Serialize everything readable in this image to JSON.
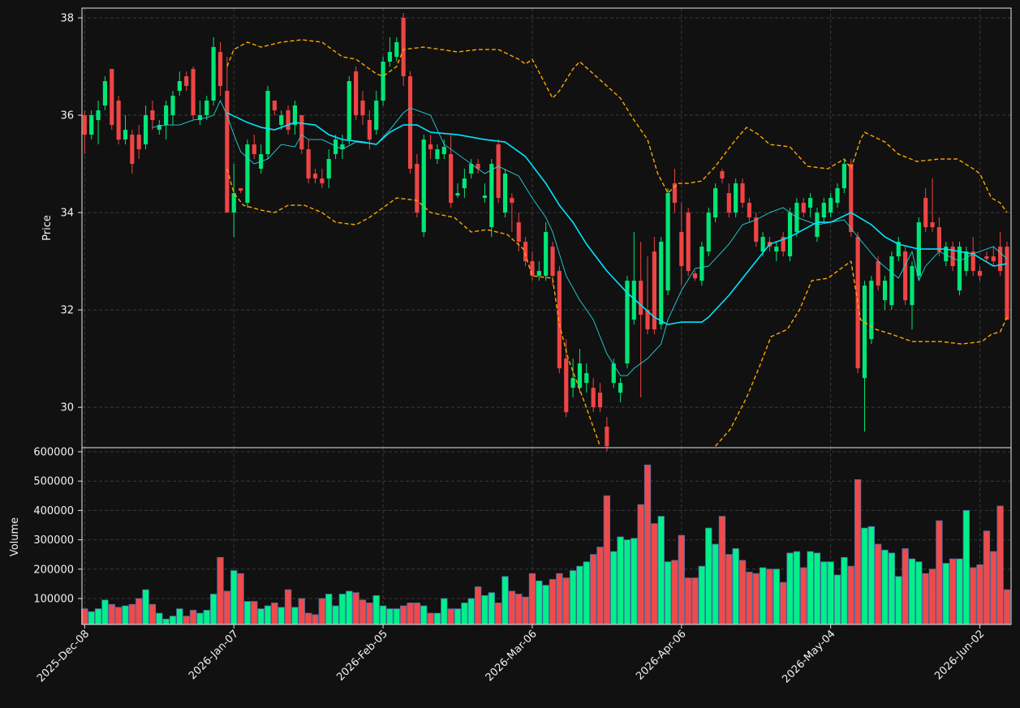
{
  "chart_data": [
    {
      "type": "candlestick",
      "ylabel": "Price",
      "xlim": [
        -0.4,
        136.6
      ],
      "ylim": [
        29.17,
        38.2
      ],
      "yticks": [
        30,
        32,
        34,
        36,
        38
      ],
      "grid": true,
      "up_color": "#00e676",
      "down_color": "#ef4444",
      "open": [
        36.0,
        35.6,
        35.9,
        36.2,
        36.95,
        36.3,
        35.5,
        35.6,
        35.6,
        35.4,
        36.1,
        35.7,
        35.8,
        36.0,
        36.5,
        36.8,
        36.95,
        35.9,
        36.0,
        36.3,
        37.3,
        36.5,
        34.0,
        34.5,
        34.2,
        35.4,
        34.9,
        35.2,
        36.3,
        35.8,
        36.1,
        35.8,
        36.0,
        35.3,
        34.8,
        34.7,
        34.7,
        35.2,
        35.3,
        35.5,
        36.9,
        36.3,
        35.9,
        35.7,
        36.3,
        37.1,
        37.2,
        38.0,
        36.8,
        35.0,
        33.6,
        35.4,
        35.1,
        35.2,
        35.2,
        34.35,
        34.5,
        34.8,
        35.0,
        34.3,
        33.7,
        35.4,
        34.0,
        34.3,
        33.8,
        33.4,
        33.0,
        32.7,
        32.7,
        33.3,
        32.8,
        31.0,
        30.4,
        30.4,
        30.5,
        30.4,
        30.3,
        29.6,
        30.5,
        30.3,
        30.9,
        31.8,
        32.6,
        32.0,
        33.2,
        31.7,
        32.4,
        34.6,
        33.6,
        34.0,
        32.75,
        32.6,
        33.2,
        33.9,
        34.85,
        34.4,
        34.0,
        34.6,
        34.2,
        33.9,
        33.2,
        33.4,
        33.2,
        33.5,
        33.1,
        33.6,
        34.2,
        34.1,
        33.5,
        33.9,
        34.0,
        34.2,
        34.5,
        35.0,
        33.5,
        30.6,
        31.4,
        33.0,
        32.2,
        32.1,
        33.1,
        33.2,
        32.1,
        32.7,
        34.3,
        33.8,
        33.7,
        33.0,
        33.3,
        32.4,
        32.8,
        33.2,
        32.8,
        33.1,
        33.1,
        33.3,
        33.3
      ],
      "high": [
        36.1,
        36.1,
        36.3,
        36.8,
        36.95,
        36.4,
        36.0,
        35.7,
        35.8,
        36.2,
        36.3,
        35.9,
        36.3,
        36.5,
        36.9,
        36.9,
        37.0,
        36.3,
        36.4,
        37.6,
        37.5,
        37.2,
        35.0,
        34.5,
        35.5,
        35.6,
        35.4,
        36.6,
        36.3,
        36.1,
        36.2,
        36.3,
        36.0,
        35.5,
        34.9,
        34.9,
        35.3,
        35.6,
        35.6,
        36.8,
        37.0,
        36.5,
        36.1,
        36.5,
        37.2,
        37.6,
        37.6,
        38.1,
        36.9,
        35.2,
        35.6,
        35.6,
        35.4,
        35.5,
        35.6,
        34.6,
        34.9,
        35.1,
        35.1,
        34.6,
        35.1,
        35.5,
        34.9,
        34.4,
        34.0,
        33.5,
        33.2,
        33.0,
        33.8,
        33.4,
        32.9,
        31.4,
        31.0,
        31.2,
        30.9,
        30.6,
        30.5,
        29.8,
        31.0,
        30.6,
        32.7,
        33.6,
        33.4,
        33.1,
        33.5,
        33.5,
        34.5,
        34.9,
        34.2,
        34.1,
        32.8,
        33.4,
        34.1,
        34.6,
        34.9,
        34.6,
        34.7,
        34.7,
        34.3,
        34.0,
        33.6,
        33.5,
        33.4,
        33.6,
        34.1,
        34.3,
        34.3,
        34.4,
        34.1,
        34.3,
        34.4,
        34.6,
        35.1,
        35.1,
        33.6,
        32.6,
        32.7,
        33.1,
        32.7,
        33.2,
        33.5,
        33.3,
        33.0,
        33.9,
        34.5,
        34.7,
        33.9,
        33.4,
        33.4,
        33.4,
        33.3,
        33.5,
        32.9,
        33.2,
        33.3,
        33.6,
        33.4
      ],
      "low": [
        35.2,
        35.5,
        35.4,
        36.1,
        35.7,
        35.4,
        35.4,
        34.8,
        35.1,
        35.3,
        35.7,
        35.6,
        35.5,
        35.8,
        36.4,
        36.5,
        35.9,
        35.8,
        35.9,
        36.2,
        36.4,
        34.0,
        33.5,
        34.4,
        34.1,
        35.1,
        34.8,
        35.1,
        36.0,
        35.7,
        35.6,
        35.6,
        35.2,
        34.6,
        34.6,
        34.5,
        34.5,
        35.1,
        35.1,
        35.4,
        35.9,
        35.8,
        35.3,
        35.6,
        36.2,
        37.0,
        37.1,
        36.6,
        34.8,
        33.9,
        33.5,
        35.1,
        35.0,
        35.1,
        34.1,
        34.3,
        34.3,
        34.7,
        34.8,
        34.2,
        33.5,
        34.2,
        33.9,
        33.6,
        33.2,
        32.9,
        32.6,
        32.6,
        32.6,
        32.5,
        30.7,
        29.8,
        30.2,
        30.3,
        30.3,
        29.9,
        29.9,
        29.1,
        30.4,
        30.1,
        30.8,
        31.7,
        30.2,
        31.5,
        31.5,
        31.6,
        32.3,
        34.0,
        32.5,
        32.7,
        32.6,
        32.5,
        33.1,
        33.8,
        34.6,
        33.9,
        33.9,
        34.1,
        33.8,
        33.3,
        33.1,
        33.2,
        33.0,
        33.1,
        33.0,
        33.5,
        33.9,
        33.9,
        33.4,
        33.8,
        33.9,
        34.1,
        34.4,
        33.5,
        30.7,
        29.5,
        31.3,
        32.4,
        32.0,
        32.0,
        33.0,
        32.1,
        31.6,
        32.6,
        33.6,
        33.6,
        33.1,
        32.9,
        32.8,
        32.3,
        32.7,
        32.7,
        32.6,
        33.0,
        32.9,
        32.7,
        31.8
      ],
      "close": [
        35.6,
        36.0,
        36.1,
        36.7,
        35.8,
        35.5,
        35.7,
        35.0,
        35.3,
        36.0,
        35.9,
        35.8,
        36.2,
        36.4,
        36.7,
        36.6,
        36.0,
        36.0,
        36.3,
        37.4,
        36.6,
        34.0,
        34.4,
        34.45,
        35.4,
        35.2,
        35.2,
        36.5,
        36.1,
        36.0,
        35.7,
        36.2,
        35.3,
        34.7,
        34.7,
        34.6,
        35.1,
        35.5,
        35.4,
        36.7,
        36.0,
        36.0,
        35.5,
        36.3,
        37.1,
        37.3,
        37.5,
        36.8,
        34.9,
        34.0,
        35.5,
        35.3,
        35.3,
        35.35,
        34.2,
        34.4,
        34.7,
        35.0,
        34.9,
        34.35,
        35.0,
        34.3,
        34.8,
        34.2,
        33.4,
        33.0,
        32.7,
        32.8,
        33.6,
        32.7,
        30.8,
        29.9,
        30.6,
        30.9,
        30.7,
        30.0,
        30.0,
        29.2,
        30.9,
        30.5,
        32.6,
        32.6,
        31.9,
        31.6,
        31.6,
        33.4,
        34.4,
        34.2,
        32.9,
        32.8,
        32.65,
        33.3,
        34.0,
        34.5,
        34.7,
        34.0,
        34.6,
        34.2,
        33.9,
        33.4,
        33.5,
        33.3,
        33.3,
        33.2,
        34.0,
        34.2,
        34.0,
        34.3,
        34.0,
        34.2,
        34.3,
        34.5,
        35.0,
        33.6,
        30.8,
        32.5,
        32.6,
        32.5,
        32.6,
        33.1,
        33.4,
        32.2,
        32.9,
        33.8,
        33.7,
        33.7,
        33.2,
        33.3,
        32.9,
        33.3,
        33.2,
        32.8,
        32.7,
        33.05,
        33.0,
        32.8,
        31.8
      ],
      "overlays": [
        {
          "color": "#00e5ff",
          "width": 1.6,
          "dash": false,
          "x": [
            21,
            24,
            26,
            28,
            31,
            34,
            36,
            38,
            41,
            43,
            45,
            47,
            49,
            51,
            55,
            59,
            62,
            65,
            68,
            70,
            72,
            74,
            77,
            80,
            82,
            84,
            86,
            88,
            91,
            92,
            95,
            97,
            99,
            101,
            104,
            106,
            108,
            110,
            113,
            116,
            118,
            120,
            123,
            127,
            131,
            134,
            136
          ],
          "values": [
            36.05,
            35.85,
            35.75,
            35.7,
            35.85,
            35.8,
            35.6,
            35.5,
            35.45,
            35.4,
            35.65,
            35.8,
            35.8,
            35.65,
            35.6,
            35.5,
            35.45,
            35.15,
            34.6,
            34.15,
            33.8,
            33.35,
            32.8,
            32.35,
            32.1,
            31.85,
            31.7,
            31.75,
            31.75,
            31.85,
            32.3,
            32.65,
            33.0,
            33.35,
            33.5,
            33.65,
            33.8,
            33.8,
            34.0,
            33.75,
            33.5,
            33.35,
            33.25,
            33.25,
            33.15,
            32.9,
            32.95
          ]
        },
        {
          "color": "#22d3dd",
          "width": 0.9,
          "dash": false,
          "x": [
            10,
            12,
            14,
            16,
            18,
            19,
            20,
            21,
            22,
            23,
            25,
            27,
            29,
            31,
            32,
            33,
            35,
            38,
            40,
            43,
            45,
            47,
            48,
            49,
            51,
            53,
            56,
            59,
            61,
            64,
            66,
            68,
            69,
            71,
            73,
            75,
            77,
            79,
            80,
            81,
            83,
            85,
            86,
            88,
            90,
            92,
            95,
            97,
            99,
            101,
            103,
            105,
            108,
            110,
            112,
            114,
            117,
            120,
            122,
            123,
            124,
            126,
            129,
            131,
            134,
            136
          ],
          "values": [
            35.75,
            35.8,
            35.8,
            35.9,
            35.95,
            36.0,
            36.3,
            36.0,
            35.6,
            35.25,
            35.0,
            35.1,
            35.4,
            35.35,
            35.6,
            35.5,
            35.5,
            35.3,
            35.45,
            35.4,
            35.7,
            36.05,
            36.15,
            36.1,
            36.0,
            35.4,
            35.1,
            34.8,
            34.95,
            34.75,
            34.3,
            33.9,
            33.6,
            32.7,
            32.2,
            31.8,
            31.1,
            30.65,
            30.65,
            30.8,
            31.0,
            31.3,
            31.8,
            32.4,
            32.85,
            32.9,
            33.35,
            33.75,
            33.85,
            34.0,
            34.1,
            33.9,
            33.75,
            33.8,
            33.85,
            33.5,
            33.0,
            32.65,
            33.2,
            32.6,
            32.9,
            33.2,
            33.0,
            33.15,
            33.3,
            33.05
          ]
        },
        {
          "color": "#ffa500",
          "width": 1.4,
          "dash": true,
          "x": [
            21,
            22,
            24,
            26,
            29,
            32,
            35,
            38,
            40,
            43,
            44,
            46,
            47,
            50,
            55,
            58,
            61,
            64,
            65,
            66,
            69,
            70,
            72,
            73,
            75,
            77,
            79,
            81,
            83,
            84.5,
            86,
            87.5,
            89,
            91,
            93,
            96,
            97.6,
            99.4,
            101,
            104,
            106.6,
            109.6,
            112,
            113,
            114.4,
            115,
            118,
            120,
            122.7,
            126,
            128.7,
            131,
            132,
            133.7,
            135,
            136
          ],
          "values": [
            37.0,
            37.35,
            37.5,
            37.4,
            37.5,
            37.55,
            37.5,
            37.2,
            37.15,
            36.85,
            36.8,
            37.0,
            37.35,
            37.4,
            37.3,
            37.35,
            37.35,
            37.15,
            37.05,
            37.15,
            36.35,
            36.5,
            36.95,
            37.1,
            36.85,
            36.6,
            36.35,
            35.9,
            35.5,
            34.8,
            34.4,
            34.6,
            34.6,
            34.65,
            34.95,
            35.5,
            35.75,
            35.6,
            35.4,
            35.35,
            34.95,
            34.9,
            35.1,
            34.9,
            35.5,
            35.65,
            35.45,
            35.2,
            35.05,
            35.1,
            35.1,
            34.9,
            34.8,
            34.3,
            34.2,
            34.0
          ]
        },
        {
          "color": "#ffa500",
          "width": 1.4,
          "dash": true,
          "x": [
            21,
            22,
            23.4,
            26,
            28,
            30,
            32.4,
            35,
            37,
            40,
            42,
            44,
            46,
            49,
            51,
            54.5,
            57,
            59.3,
            62.3,
            64.7,
            66,
            69,
            70,
            71.3,
            73.7,
            76,
            null,
            93,
            95.2,
            97.6,
            99.4,
            101.2,
            103.6,
            105.4,
            107.2,
            109.6,
            112,
            113,
            114.4,
            116.7,
            119,
            122,
            126.3,
            129.3,
            132.3,
            133.7,
            135,
            136
          ],
          "values": [
            34.9,
            34.4,
            34.15,
            34.05,
            34.0,
            34.15,
            34.15,
            34.0,
            33.8,
            33.75,
            33.9,
            34.1,
            34.3,
            34.25,
            34.0,
            33.9,
            33.6,
            33.65,
            33.55,
            33.25,
            32.7,
            32.65,
            31.7,
            31.0,
            30.1,
            29.2,
            null,
            29.2,
            29.55,
            30.2,
            30.8,
            31.45,
            31.6,
            32.0,
            32.6,
            32.65,
            32.9,
            33.0,
            31.8,
            31.6,
            31.5,
            31.35,
            31.35,
            31.3,
            31.35,
            31.5,
            31.55,
            31.85
          ]
        }
      ]
    },
    {
      "type": "bar",
      "ylabel": "Volume",
      "xlim": [
        -0.4,
        136.6
      ],
      "ylim": [
        11600,
        613800
      ],
      "yticks": [
        100000,
        200000,
        300000,
        400000,
        500000,
        600000
      ],
      "grid": true,
      "xticks": [
        {
          "value": 0,
          "label": "2025-Dec-08"
        },
        {
          "value": 22,
          "label": "2026-Jan-07"
        },
        {
          "value": 44,
          "label": "2026-Feb-05"
        },
        {
          "value": 66,
          "label": "2026-Mar-06"
        },
        {
          "value": 88,
          "label": "2026-Apr-06"
        },
        {
          "value": 110,
          "label": "2026-May-04"
        },
        {
          "value": 132,
          "label": "2026-Jun-02"
        }
      ],
      "up_color": "#00f08a",
      "down_color": "#f04a4a",
      "edge_color": "#4a6fa5",
      "values": [
        65000,
        55000,
        65000,
        95000,
        80000,
        70000,
        75000,
        80000,
        100000,
        130000,
        80000,
        50000,
        30000,
        40000,
        65000,
        40000,
        60000,
        50000,
        60000,
        115000,
        240000,
        125000,
        195000,
        185000,
        90000,
        90000,
        65000,
        75000,
        85000,
        70000,
        130000,
        70000,
        100000,
        50000,
        45000,
        100000,
        115000,
        75000,
        115000,
        125000,
        120000,
        95000,
        85000,
        110000,
        75000,
        65000,
        65000,
        75000,
        85000,
        85000,
        75000,
        50000,
        50000,
        100000,
        65000,
        65000,
        85000,
        100000,
        140000,
        110000,
        120000,
        85000,
        175000,
        125000,
        115000,
        105000,
        185000,
        160000,
        145000,
        165000,
        185000,
        170000,
        195000,
        210000,
        225000,
        250000,
        275000,
        450000,
        260000,
        310000,
        300000,
        305000,
        420000,
        555000,
        355000,
        380000,
        225000,
        230000,
        315000,
        170000,
        170000,
        210000,
        340000,
        285000,
        380000,
        250000,
        270000,
        230000,
        190000,
        185000,
        205000,
        200000,
        200000,
        155000,
        255000,
        260000,
        205000,
        260000,
        255000,
        225000,
        225000,
        180000,
        240000,
        210000,
        505000,
        340000,
        345000,
        285000,
        265000,
        255000,
        175000,
        270000,
        235000,
        225000,
        185000,
        200000,
        365000,
        220000,
        235000,
        235000,
        400000,
        205000,
        215000,
        330000,
        260000,
        415000,
        130000
      ]
    }
  ]
}
